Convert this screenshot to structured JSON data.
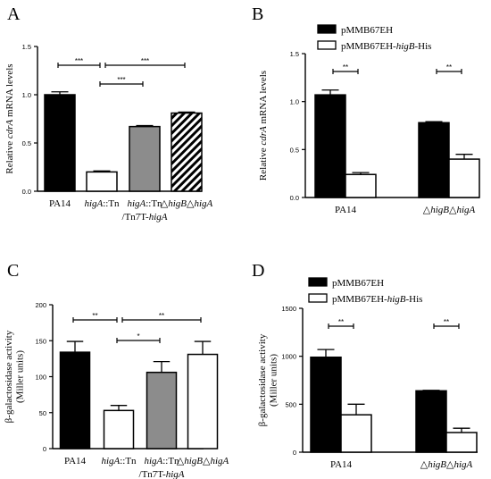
{
  "chart_data": [
    {
      "panel_letter": "A",
      "type": "bar",
      "ylabel": "Relative cdrA mRNA levels",
      "ylim": [
        0,
        1.5
      ],
      "yticks": [
        "0.0",
        "0.5",
        "1.0",
        "1.5"
      ],
      "categories": [
        "PA14",
        "higA::Tn",
        "higA::Tn /Tn7T-higA",
        "△higB△higA"
      ],
      "values": [
        1.0,
        0.2,
        0.67,
        0.81
      ],
      "errors": [
        0.03,
        0.01,
        0.01,
        0.01
      ],
      "bar_fills": [
        "black",
        "white",
        "gray",
        "hatch"
      ],
      "significance": [
        {
          "from": 0,
          "to": 1,
          "label": "***"
        },
        {
          "from": 1,
          "to": 2,
          "label": "***"
        },
        {
          "from": 1,
          "to": 3,
          "label": "***"
        }
      ],
      "legend": []
    },
    {
      "panel_letter": "B",
      "type": "bar",
      "ylabel": "Relative cdrA mRNA levels",
      "ylim": [
        0,
        1.5
      ],
      "yticks": [
        "0.0",
        "0.5",
        "1.0",
        "1.5"
      ],
      "categories": [
        "PA14",
        "△higB△higA"
      ],
      "series": [
        {
          "name": "pMMB67EH",
          "fill": "black",
          "values": [
            1.07,
            0.78
          ],
          "errors": [
            0.05,
            0.01
          ]
        },
        {
          "name": "pMMB67EH-higB-His",
          "fill": "white",
          "values": [
            0.24,
            0.4
          ],
          "errors": [
            0.02,
            0.05
          ]
        }
      ],
      "significance": [
        {
          "group": 0,
          "label": "**"
        },
        {
          "group": 1,
          "label": "**"
        }
      ],
      "legend": [
        "pMMB67EH",
        "pMMB67EH-higB-His"
      ]
    },
    {
      "panel_letter": "C",
      "type": "bar",
      "ylabel": "β-galactosidase activity (Miller units)",
      "ylim": [
        0,
        200
      ],
      "yticks": [
        "0",
        "50",
        "100",
        "150",
        "200"
      ],
      "categories": [
        "PA14",
        "higA::Tn",
        "higA::Tn /Tn7T-higA",
        "△higB△higA"
      ],
      "values": [
        134,
        53,
        106,
        131
      ],
      "errors": [
        15,
        7,
        15,
        18
      ],
      "bar_fills": [
        "black",
        "white",
        "gray",
        "white"
      ],
      "significance": [
        {
          "from": 0,
          "to": 1,
          "label": "**"
        },
        {
          "from": 1,
          "to": 2,
          "label": "*"
        },
        {
          "from": 1,
          "to": 3,
          "label": "**"
        }
      ],
      "legend": []
    },
    {
      "panel_letter": "D",
      "type": "bar",
      "ylabel": "β-galactosidase activity (Miller units)",
      "ylim": [
        0,
        1500
      ],
      "yticks": [
        "0",
        "500",
        "1000",
        "1500"
      ],
      "categories": [
        "PA14",
        "△higB△higA"
      ],
      "series": [
        {
          "name": "pMMB67EH",
          "fill": "black",
          "values": [
            990,
            640
          ],
          "errors": [
            80,
            5
          ]
        },
        {
          "name": "pMMB67EH-higB-His",
          "fill": "white",
          "values": [
            390,
            205
          ],
          "errors": [
            110,
            45
          ]
        }
      ],
      "significance": [
        {
          "group": 0,
          "label": "**"
        },
        {
          "group": 1,
          "label": "**"
        }
      ],
      "legend": [
        "pMMB67EH",
        "pMMB67EH-higB-His"
      ]
    }
  ]
}
